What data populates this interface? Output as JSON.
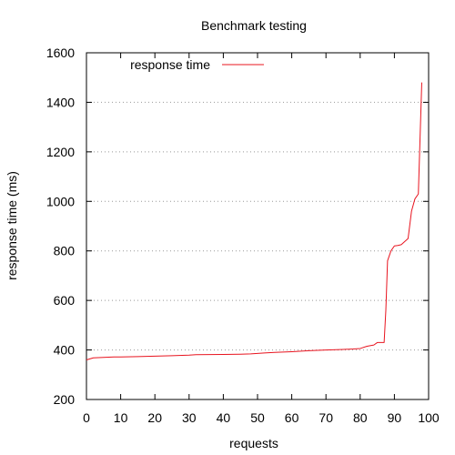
{
  "chart_data": {
    "type": "line",
    "title": "Benchmark testing",
    "xlabel": "requests",
    "ylabel": "response time (ms)",
    "xlim": [
      0,
      100
    ],
    "ylim": [
      200,
      1600
    ],
    "x_ticks": [
      0,
      10,
      20,
      30,
      40,
      50,
      60,
      70,
      80,
      90,
      100
    ],
    "y_ticks": [
      200,
      400,
      600,
      800,
      1000,
      1200,
      1400,
      1600
    ],
    "grid": "horizontal-dotted",
    "legend_position": "top-left",
    "series": [
      {
        "name": "response time",
        "color": "#e8141f",
        "x": [
          0,
          2,
          5,
          8,
          10,
          15,
          20,
          25,
          30,
          32,
          40,
          45,
          48,
          52,
          55,
          60,
          65,
          70,
          75,
          78,
          80,
          82,
          84,
          85,
          87,
          87.5,
          88,
          89,
          90,
          91,
          92,
          94,
          95,
          96,
          97,
          98
        ],
        "y": [
          360,
          368,
          370,
          372,
          372,
          373,
          375,
          377,
          379,
          381,
          382,
          383,
          384,
          388,
          390,
          393,
          397,
          400,
          402,
          404,
          406,
          415,
          420,
          430,
          430,
          560,
          760,
          800,
          820,
          822,
          825,
          850,
          960,
          1010,
          1030,
          1480
        ]
      }
    ]
  }
}
